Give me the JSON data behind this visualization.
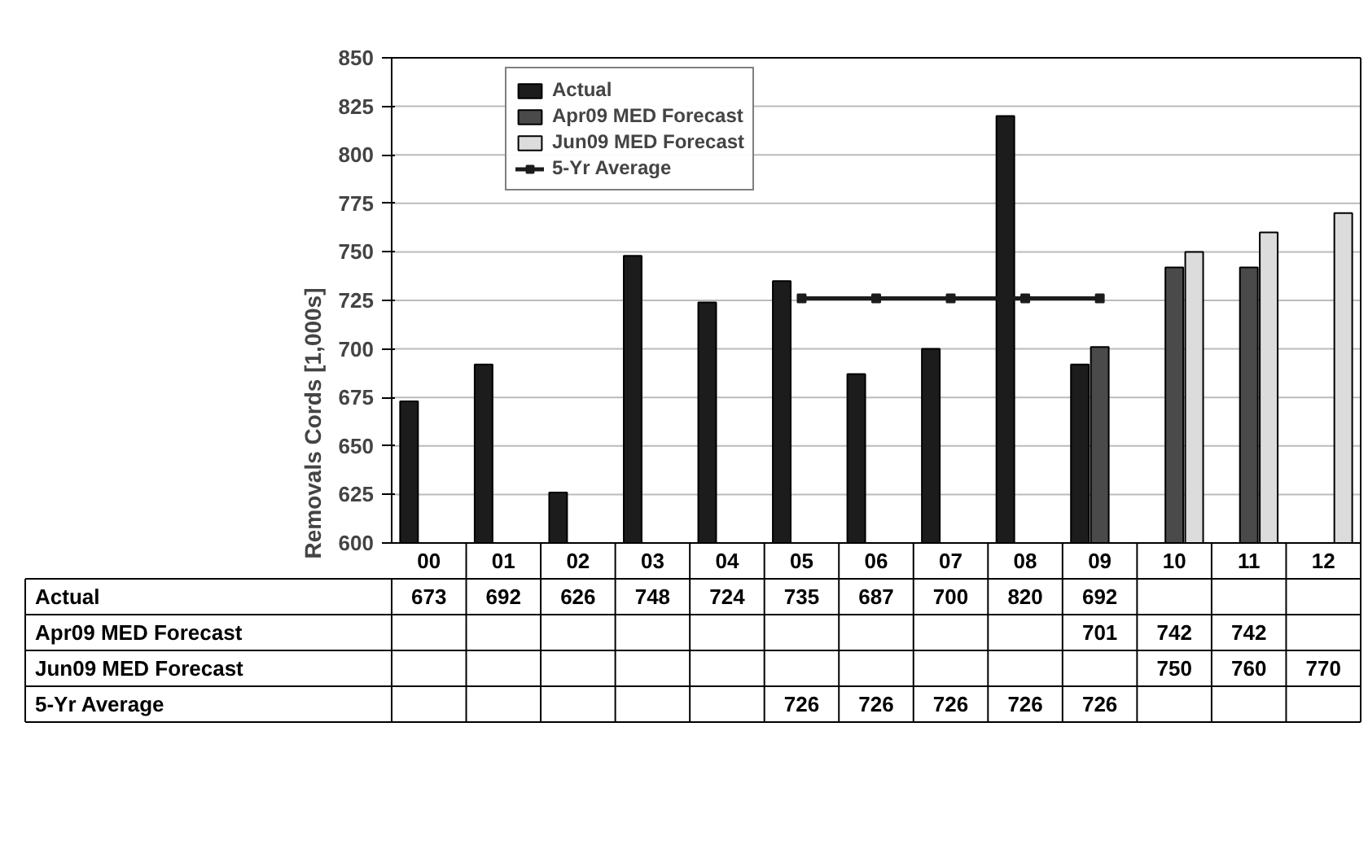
{
  "chart_data": {
    "type": "bar",
    "ylabel": "Removals Cords [1,000s]",
    "categories": [
      "00",
      "01",
      "02",
      "03",
      "04",
      "05",
      "06",
      "07",
      "08",
      "09",
      "10",
      "11",
      "12"
    ],
    "series": [
      {
        "name": "Actual",
        "color": "#1c1c1c",
        "values": [
          673,
          692,
          626,
          748,
          724,
          735,
          687,
          700,
          820,
          692,
          null,
          null,
          null
        ]
      },
      {
        "name": "Apr09 MED Forecast",
        "color": "#4a4a4a",
        "values": [
          null,
          null,
          null,
          null,
          null,
          null,
          null,
          null,
          null,
          701,
          742,
          742,
          null
        ]
      },
      {
        "name": "Jun09 MED Forecast",
        "color": "#dcdcdc",
        "values": [
          null,
          null,
          null,
          null,
          null,
          null,
          null,
          null,
          null,
          null,
          750,
          760,
          770
        ]
      },
      {
        "name": "5-Yr Average",
        "color": "#1c1c1c",
        "type": "line",
        "marker": "square",
        "values": [
          null,
          null,
          null,
          null,
          null,
          726,
          726,
          726,
          726,
          726,
          null,
          null,
          null
        ]
      }
    ],
    "ylim": [
      600,
      850
    ],
    "yticks": [
      600,
      625,
      650,
      675,
      700,
      725,
      750,
      775,
      800,
      825,
      850
    ],
    "grid": "y",
    "legend": "top left",
    "data_labels": true
  }
}
